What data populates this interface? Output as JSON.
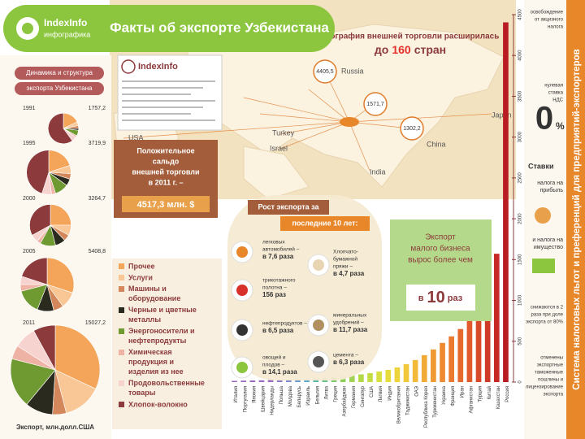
{
  "header": {
    "logo": "IndexInfo",
    "logo_sub": "инфографика",
    "title": "Факты об экспорте Узбекистана"
  },
  "dynamics": {
    "title_1": "Динамика и структура",
    "title_2": "экспорта Узбекистана",
    "caption": "Экспорт, млн.долл.США"
  },
  "copyright": {
    "logo": "IndexInfo"
  },
  "map": {
    "title_1": "География внешней торговли расширилась",
    "title_2": "до",
    "title_num": "160",
    "title_3": "стран",
    "labels": [
      "Russia",
      "China",
      "India",
      "Japan",
      "Turkey",
      "Israel",
      "USA"
    ],
    "bubbles": [
      "4405,5",
      "1571,7",
      "1302,2"
    ]
  },
  "balance": {
    "text": [
      "Положительное",
      "сальдо",
      "внешней торговли",
      "в 2011 г. –"
    ],
    "value": "4517,3 млн. $"
  },
  "growth": {
    "title_1": "Рост экспорта за",
    "title_2": "последние 10 лет:",
    "items": [
      [
        "легковых",
        "автомобилей –",
        "в 7,6 раза"
      ],
      [
        "Хлопчато-",
        "бумажной",
        "пряжи –",
        "в 4,7 раза"
      ],
      [
        "трикотажного",
        "полотна –",
        "156 раз"
      ],
      [
        "нефтепродуктов –",
        "в 6,5 раза"
      ],
      [
        "минеральных",
        "удобрений –",
        "в 11,7 раза"
      ],
      [
        "овощей и",
        "плодов –",
        "в 14,1 раза"
      ],
      [
        "цемента –",
        "в 6,3 раза"
      ]
    ]
  },
  "small_business": {
    "text": [
      "Экспорт",
      "малого бизнеса",
      "вырос более чем"
    ],
    "prefix": "в",
    "num": "10",
    "suffix": "раз"
  },
  "benefits": {
    "groups": [
      [
        "освобождение",
        "от акцизного",
        "налога"
      ],
      [
        "нулевая",
        "ставка",
        "НДС"
      ],
      [
        "Ставки"
      ],
      [
        "налога на",
        "прибыль"
      ],
      [
        "и налога на",
        "имущество"
      ],
      [
        "снижаются в 2",
        "раза при доле",
        "экспорта от 80%"
      ],
      [
        "отменены",
        "экспортные",
        "таможенные",
        "пошлины и",
        "лицензирование",
        "экспорта"
      ]
    ],
    "zero": "0",
    "percent": "%"
  },
  "side_title": "Система налоговых льгот и преференций для предприятий-экспортеров",
  "chart_data": [
    {
      "type": "pie",
      "categories": [
        "Прочее",
        "Услуги",
        "Машины и оборудование",
        "Черные и цветные металлы",
        "Энергоносители и нефтепродукты",
        "Химическая продукция и изделия из нее",
        "Продовольственные товары",
        "Хлопок-волокно"
      ],
      "colors": [
        "#f5a55a",
        "#f9c796",
        "#d4875a",
        "#2b2a1e",
        "#6f9a32",
        "#efb3a6",
        "#f7d3cf",
        "#8c3a3c"
      ],
      "pies": [
        {
          "year": "1991",
          "total": {
            "value": 1757.2,
            "label": "1757,2"
          },
          "values": [
            18,
            4,
            3,
            2,
            6,
            2,
            5,
            60
          ]
        },
        {
          "year": "1995",
          "total": {
            "value": 3719.9,
            "label": "3719,9"
          },
          "values": [
            20,
            6,
            4,
            5,
            10,
            3,
            7,
            45
          ]
        },
        {
          "year": "2000",
          "total": {
            "value": 3264.7,
            "label": "3264,7"
          },
          "values": [
            25,
            8,
            5,
            8,
            12,
            3,
            6,
            33
          ]
        },
        {
          "year": "2005",
          "total": {
            "value": 5408.8,
            "label": "5408,8"
          },
          "values": [
            30,
            10,
            6,
            10,
            15,
            4,
            5,
            20
          ]
        },
        {
          "year": "2011",
          "total": {
            "value": 15027.2,
            "label": "15027,2"
          },
          "values": [
            32,
            14,
            5,
            10,
            18,
            5,
            8,
            8
          ]
        }
      ]
    },
    {
      "type": "bar",
      "categories": [
        "Италия",
        "Португалия",
        "Япония",
        "Швейцария",
        "Нидерланды",
        "Польша",
        "Молдова",
        "Беларусь",
        "Израиль",
        "Бельгия",
        "Литва",
        "Греция",
        "Азербайджан",
        "Германия",
        "Сингапур",
        "США",
        "Латвия",
        "Индия",
        "Великобритания",
        "Таджикистан",
        "ОАЭ",
        "Республика Корея",
        "Туркменистан",
        "Украина",
        "Франция",
        "Иран",
        "Афганистан",
        "Турция",
        "Китай",
        "Казахстан",
        "Россия"
      ],
      "values": [
        15,
        18,
        20,
        22,
        25,
        28,
        30,
        35,
        40,
        45,
        50,
        60,
        70,
        80,
        95,
        110,
        130,
        150,
        180,
        220,
        270,
        330,
        400,
        480,
        560,
        650,
        750,
        900,
        1302.2,
        1571.7,
        4405.5
      ],
      "colors": [
        "#9a6bbf",
        "#9a6bbf",
        "#9a6bbf",
        "#9a6bbf",
        "#9a6bbf",
        "#8f7cc8",
        "#7f8bd0",
        "#6f9ad0",
        "#5fa8c8",
        "#5fb5a8",
        "#6abf88",
        "#7cc86a",
        "#8ecf5a",
        "#a0d450",
        "#b3d848",
        "#c6dc44",
        "#d8df40",
        "#e6dc3e",
        "#eed43c",
        "#f0c83a",
        "#f2ba38",
        "#f2aa36",
        "#f09a34",
        "#ee8a32",
        "#ea7a30",
        "#e66a2e",
        "#e05a2c",
        "#d84a2a",
        "#cf3a28",
        "#c52a26",
        "#b81c22"
      ],
      "ylim": [
        0,
        4500
      ],
      "yticks": [
        0,
        500,
        1000,
        1500,
        2000,
        2500,
        3000,
        3500,
        4000,
        4500
      ]
    }
  ]
}
